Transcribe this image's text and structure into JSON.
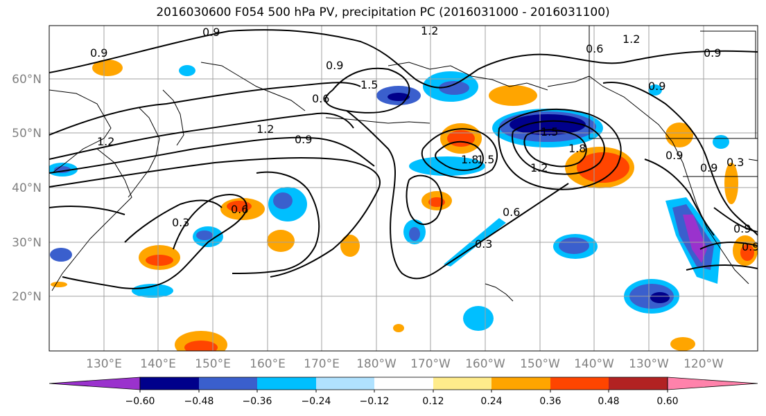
{
  "title": "2016030600 F054 500 hPa PV, precipitation PC (2016031000 - 2016031100)",
  "lat_labels": [
    "60°N",
    "50°N",
    "40°N",
    "30°N",
    "20°N"
  ],
  "lon_labels": [
    "130°E",
    "140°E",
    "150°E",
    "160°E",
    "170°E",
    "180°W",
    "170°W",
    "160°W",
    "150°W",
    "140°W",
    "130°W",
    "120°W"
  ],
  "colorbar": {
    "ticks": [
      "−0.60",
      "−0.48",
      "−0.36",
      "−0.24",
      "−0.12",
      "0.12",
      "0.24",
      "0.36",
      "0.48",
      "0.60"
    ],
    "colors": [
      "#9a32cd",
      "#00008b",
      "#3a5fcd",
      "#00bfff",
      "#b0e2ff",
      "#ffffff",
      "#ffec8b",
      "#ffa500",
      "#ff4500",
      "#b22222",
      "#ff82ab"
    ]
  },
  "contour_labels": [
    "0.9",
    "1.2",
    "1.2",
    "0.6",
    "0.9",
    "0.9",
    "0.9",
    "0.6",
    "1.2",
    "0.9",
    "1.2",
    "1.5",
    "1.5",
    "1.8",
    "1.8",
    "1.5",
    "1.2",
    "0.6",
    "0.3",
    "0.6",
    "0.3",
    "0.9",
    "0.9",
    "0.9",
    "0.3",
    "0.9",
    "0.9"
  ],
  "colors": {
    "grid": "#a0a0a0",
    "contour": "#000000"
  }
}
